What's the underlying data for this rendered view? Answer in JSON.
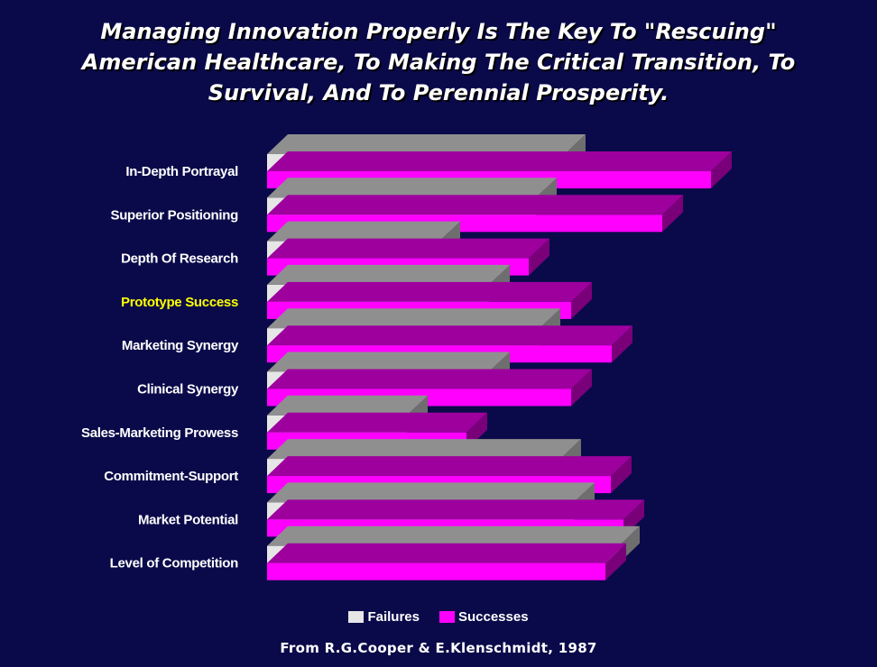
{
  "title_lines": [
    "Managing Innovation Properly Is The Key To \"Rescuing\"",
    "American Healthcare, To Making The Critical Transition, To",
    "Survival, And To Perennial Prosperity."
  ],
  "source": "From R.G.Cooper & E.Klenschmidt, 1987",
  "colors": {
    "background": "#0a0a4a",
    "failures": "#e6e6e6",
    "successes": "#ff00ff",
    "label": "#ffffff",
    "highlight_label": "#ffff00"
  },
  "chart_data": {
    "type": "bar",
    "orientation": "horizontal",
    "style": "3d",
    "categories": [
      "In-Depth Portrayal",
      "Superior Positioning",
      "Depth Of Research",
      "Prototype Success",
      "Marketing Synergy",
      "Clinical Synergy",
      "Sales-Marketing Prowess",
      "Commitment-Support",
      "Market Potential",
      "Level of Competition"
    ],
    "highlighted_category": "Prototype Success",
    "series": [
      {
        "name": "Failures",
        "values": [
          330,
          298,
          191,
          246,
          302,
          246,
          155,
          325,
          340,
          390
        ]
      },
      {
        "name": "Successes",
        "values": [
          492,
          438,
          290,
          337,
          382,
          337,
          221,
          381,
          395,
          375
        ]
      }
    ],
    "legend": [
      "Failures",
      "Successes"
    ],
    "legend_position": "bottom",
    "grid": false,
    "xlabel": "",
    "ylabel": ""
  }
}
